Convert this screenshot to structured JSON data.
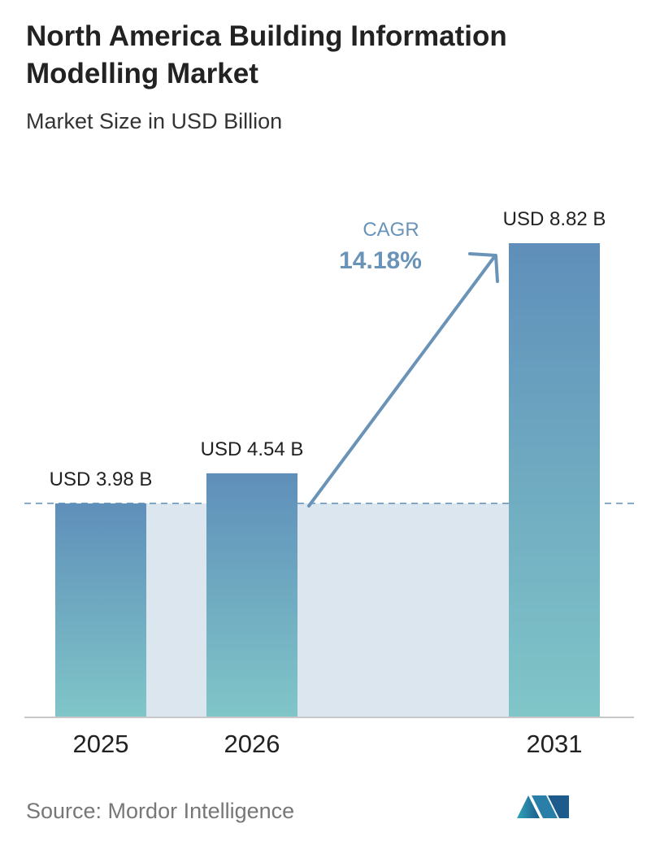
{
  "chart_data": {
    "type": "bar",
    "title": "North America Building Information Modelling Market",
    "subtitle": "Market Size in USD Billion",
    "categories": [
      "2025",
      "2026",
      "2031"
    ],
    "values": [
      3.98,
      4.54,
      8.82
    ],
    "value_labels": [
      "USD 3.98 B",
      "USD 4.54 B",
      "USD 8.82 B"
    ],
    "annotation": {
      "label": "CAGR",
      "value": "14.18%"
    },
    "source": "Source:  Mordor Intelligence"
  }
}
